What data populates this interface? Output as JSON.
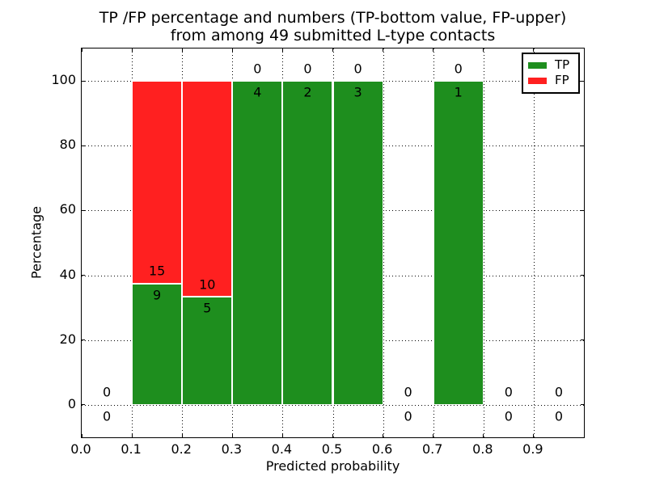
{
  "figure": {
    "title_line1": "TP /FP percentage and numbers (TP-bottom value, FP-upper)",
    "title_line2": "from among 49 submitted L-type contacts"
  },
  "chart_data": {
    "type": "bar",
    "stacked": true,
    "title": "TP /FP percentage and numbers (TP-bottom value, FP-upper)\nfrom among 49 submitted L-type contacts",
    "xlabel": "Predicted probability",
    "ylabel": "Percentage",
    "xlim": [
      0.0,
      1.0
    ],
    "ylim": [
      -10,
      110
    ],
    "xtick_values": [
      0.0,
      0.1,
      0.2,
      0.3,
      0.4,
      0.5,
      0.6,
      0.7,
      0.8,
      0.9
    ],
    "xtick_labels": [
      "0.0",
      "0.1",
      "0.2",
      "0.3",
      "0.4",
      "0.5",
      "0.6",
      "0.7",
      "0.8",
      "0.9"
    ],
    "ytick_values": [
      0,
      20,
      40,
      60,
      80,
      100
    ],
    "ytick_labels": [
      "0",
      "20",
      "40",
      "60",
      "80",
      "100"
    ],
    "grid": true,
    "grid_style": "dotted",
    "total_contacts": 49,
    "bins": [
      {
        "range": [
          0.0,
          0.1
        ],
        "tp": 0,
        "fp": 0
      },
      {
        "range": [
          0.1,
          0.2
        ],
        "tp": 9,
        "fp": 15
      },
      {
        "range": [
          0.2,
          0.3
        ],
        "tp": 5,
        "fp": 10
      },
      {
        "range": [
          0.3,
          0.4
        ],
        "tp": 4,
        "fp": 0
      },
      {
        "range": [
          0.4,
          0.5
        ],
        "tp": 2,
        "fp": 0
      },
      {
        "range": [
          0.5,
          0.6
        ],
        "tp": 3,
        "fp": 0
      },
      {
        "range": [
          0.6,
          0.7
        ],
        "tp": 0,
        "fp": 0
      },
      {
        "range": [
          0.7,
          0.8
        ],
        "tp": 1,
        "fp": 0
      },
      {
        "range": [
          0.8,
          0.9
        ],
        "tp": 0,
        "fp": 0
      },
      {
        "range": [
          0.9,
          1.0
        ],
        "tp": 0,
        "fp": 0
      }
    ],
    "tp_percent": [
      0,
      37.5,
      33.33,
      100,
      100,
      100,
      0,
      100,
      0,
      0
    ],
    "fp_percent": [
      0,
      62.5,
      66.67,
      0,
      0,
      0,
      0,
      0,
      0,
      0
    ],
    "legend": {
      "position": "upper right",
      "entries": [
        {
          "label": "TP",
          "color": "#1e8e1e"
        },
        {
          "label": "FP",
          "color": "#ff2020"
        }
      ]
    },
    "colors": {
      "tp": "#1e8e1e",
      "fp": "#ff2020",
      "bar_edge": "#ffffff",
      "grid": "#000000",
      "text": "#000000",
      "background": "#ffffff"
    }
  }
}
